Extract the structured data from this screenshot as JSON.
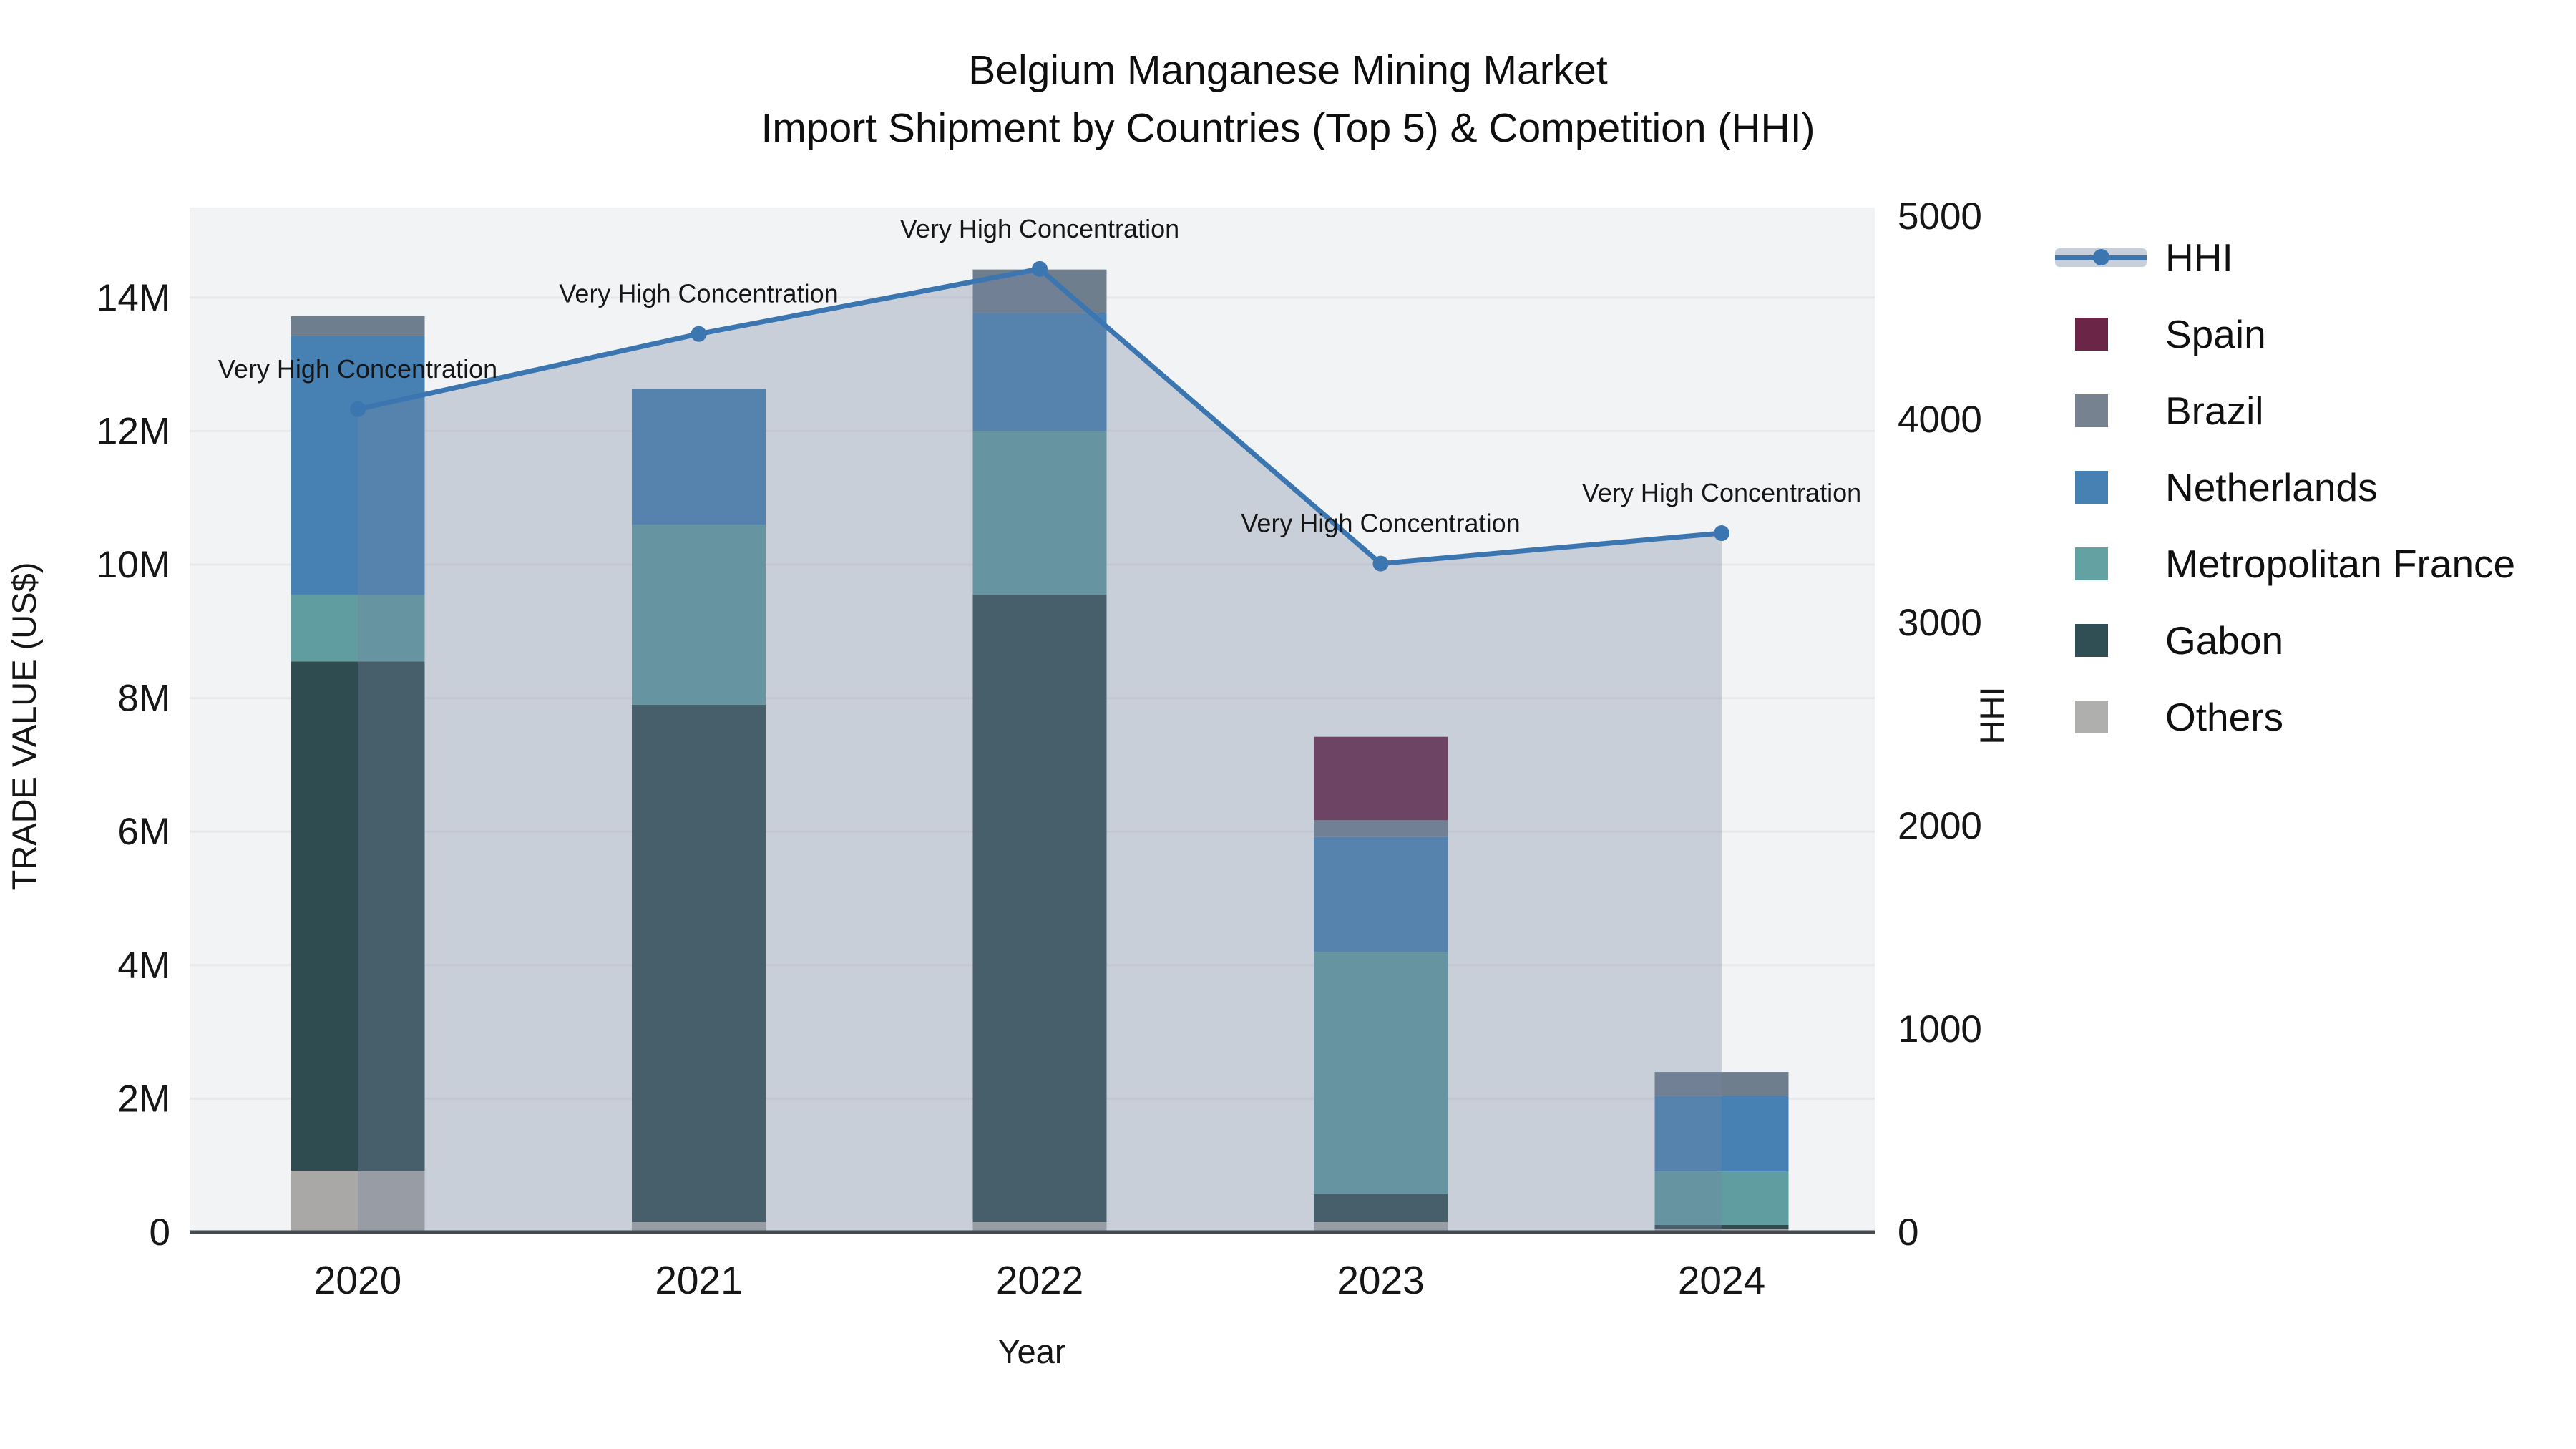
{
  "title": {
    "line1": "Belgium Manganese Mining Market",
    "line2": "Import Shipment by Countries (Top 5) & Competition (HHI)"
  },
  "axes": {
    "x": {
      "title": "Year",
      "categories": [
        "2020",
        "2021",
        "2022",
        "2023",
        "2024"
      ]
    },
    "y_left": {
      "title": "TRADE VALUE (US$)",
      "ticks": [
        {
          "label": "0",
          "value": 0
        },
        {
          "label": "2M",
          "value": 2
        },
        {
          "label": "4M",
          "value": 4
        },
        {
          "label": "6M",
          "value": 6
        },
        {
          "label": "8M",
          "value": 8
        },
        {
          "label": "10M",
          "value": 10
        },
        {
          "label": "12M",
          "value": 12
        },
        {
          "label": "14M",
          "value": 14
        }
      ]
    },
    "y_right": {
      "title": "HHI",
      "ticks": [
        {
          "label": "0",
          "value": 0
        },
        {
          "label": "1000",
          "value": 1000
        },
        {
          "label": "2000",
          "value": 2000
        },
        {
          "label": "3000",
          "value": 3000
        },
        {
          "label": "4000",
          "value": 4000
        },
        {
          "label": "5000",
          "value": 5000
        }
      ]
    }
  },
  "legend": {
    "items": [
      {
        "label": "HHI",
        "type": "line",
        "color": "#3c76b0"
      },
      {
        "label": "Spain",
        "type": "square",
        "color": "#6b2547"
      },
      {
        "label": "Brazil",
        "type": "square",
        "color": "#76828f"
      },
      {
        "label": "Netherlands",
        "type": "square",
        "color": "#4781b4"
      },
      {
        "label": "Metropolitan France",
        "type": "square",
        "color": "#64a1a2"
      },
      {
        "label": "Gabon",
        "type": "square",
        "color": "#2f4f55"
      },
      {
        "label": "Others",
        "type": "square",
        "color": "#afafad"
      }
    ]
  },
  "chart_data": {
    "type": [
      "bar",
      "line"
    ],
    "title": "Belgium Manganese Mining Market — Import Shipment by Countries (Top 5) & Competition (HHI)",
    "xlabel": "Year",
    "ylabel_left": "TRADE VALUE (US$)",
    "ylabel_right": "HHI",
    "bar_mode": "stacked",
    "bar_unit": "US$ millions",
    "categories": [
      "2020",
      "2021",
      "2022",
      "2023",
      "2024"
    ],
    "series": [
      {
        "name": "Others",
        "color": "#a9a8a6",
        "values": [
          0.92,
          0.15,
          0.15,
          0.15,
          0.05
        ]
      },
      {
        "name": "Gabon",
        "color": "#2f4c50",
        "values": [
          7.63,
          7.75,
          9.4,
          0.42,
          0.06
        ]
      },
      {
        "name": "Metropolitan France",
        "color": "#5f9da0",
        "values": [
          1.0,
          2.7,
          2.45,
          3.63,
          0.8
        ]
      },
      {
        "name": "Netherlands",
        "color": "#4781b4",
        "values": [
          3.87,
          2.03,
          1.77,
          1.72,
          1.13
        ]
      },
      {
        "name": "Brazil",
        "color": "#6f7e8d",
        "values": [
          0.3,
          0.0,
          0.65,
          0.25,
          0.36
        ]
      },
      {
        "name": "Spain",
        "color": "#6b2547",
        "values": [
          0.0,
          0.0,
          0.0,
          1.25,
          0.0
        ]
      }
    ],
    "bar_totals": [
      13.72,
      12.63,
      14.42,
      7.42,
      2.4
    ],
    "line_series": {
      "name": "HHI",
      "color": "#3c76b0",
      "area_fill": "rgba(118,133,165,0.33)",
      "values": [
        4050,
        4420,
        4740,
        3290,
        3440
      ],
      "annotations": [
        "Very High Concentration",
        "Very High Concentration",
        "Very High Concentration",
        "Very High Concentration",
        "Very High Concentration"
      ]
    },
    "ylim_left": [
      0,
      15.35
    ],
    "ylim_right": [
      0,
      5040
    ],
    "grid": true,
    "legend_position": "right"
  },
  "colors": {
    "plot_bg": "#f2f3f4",
    "grid": "#e7e8eb",
    "axis_line": "#444a50",
    "text": "#101010"
  }
}
